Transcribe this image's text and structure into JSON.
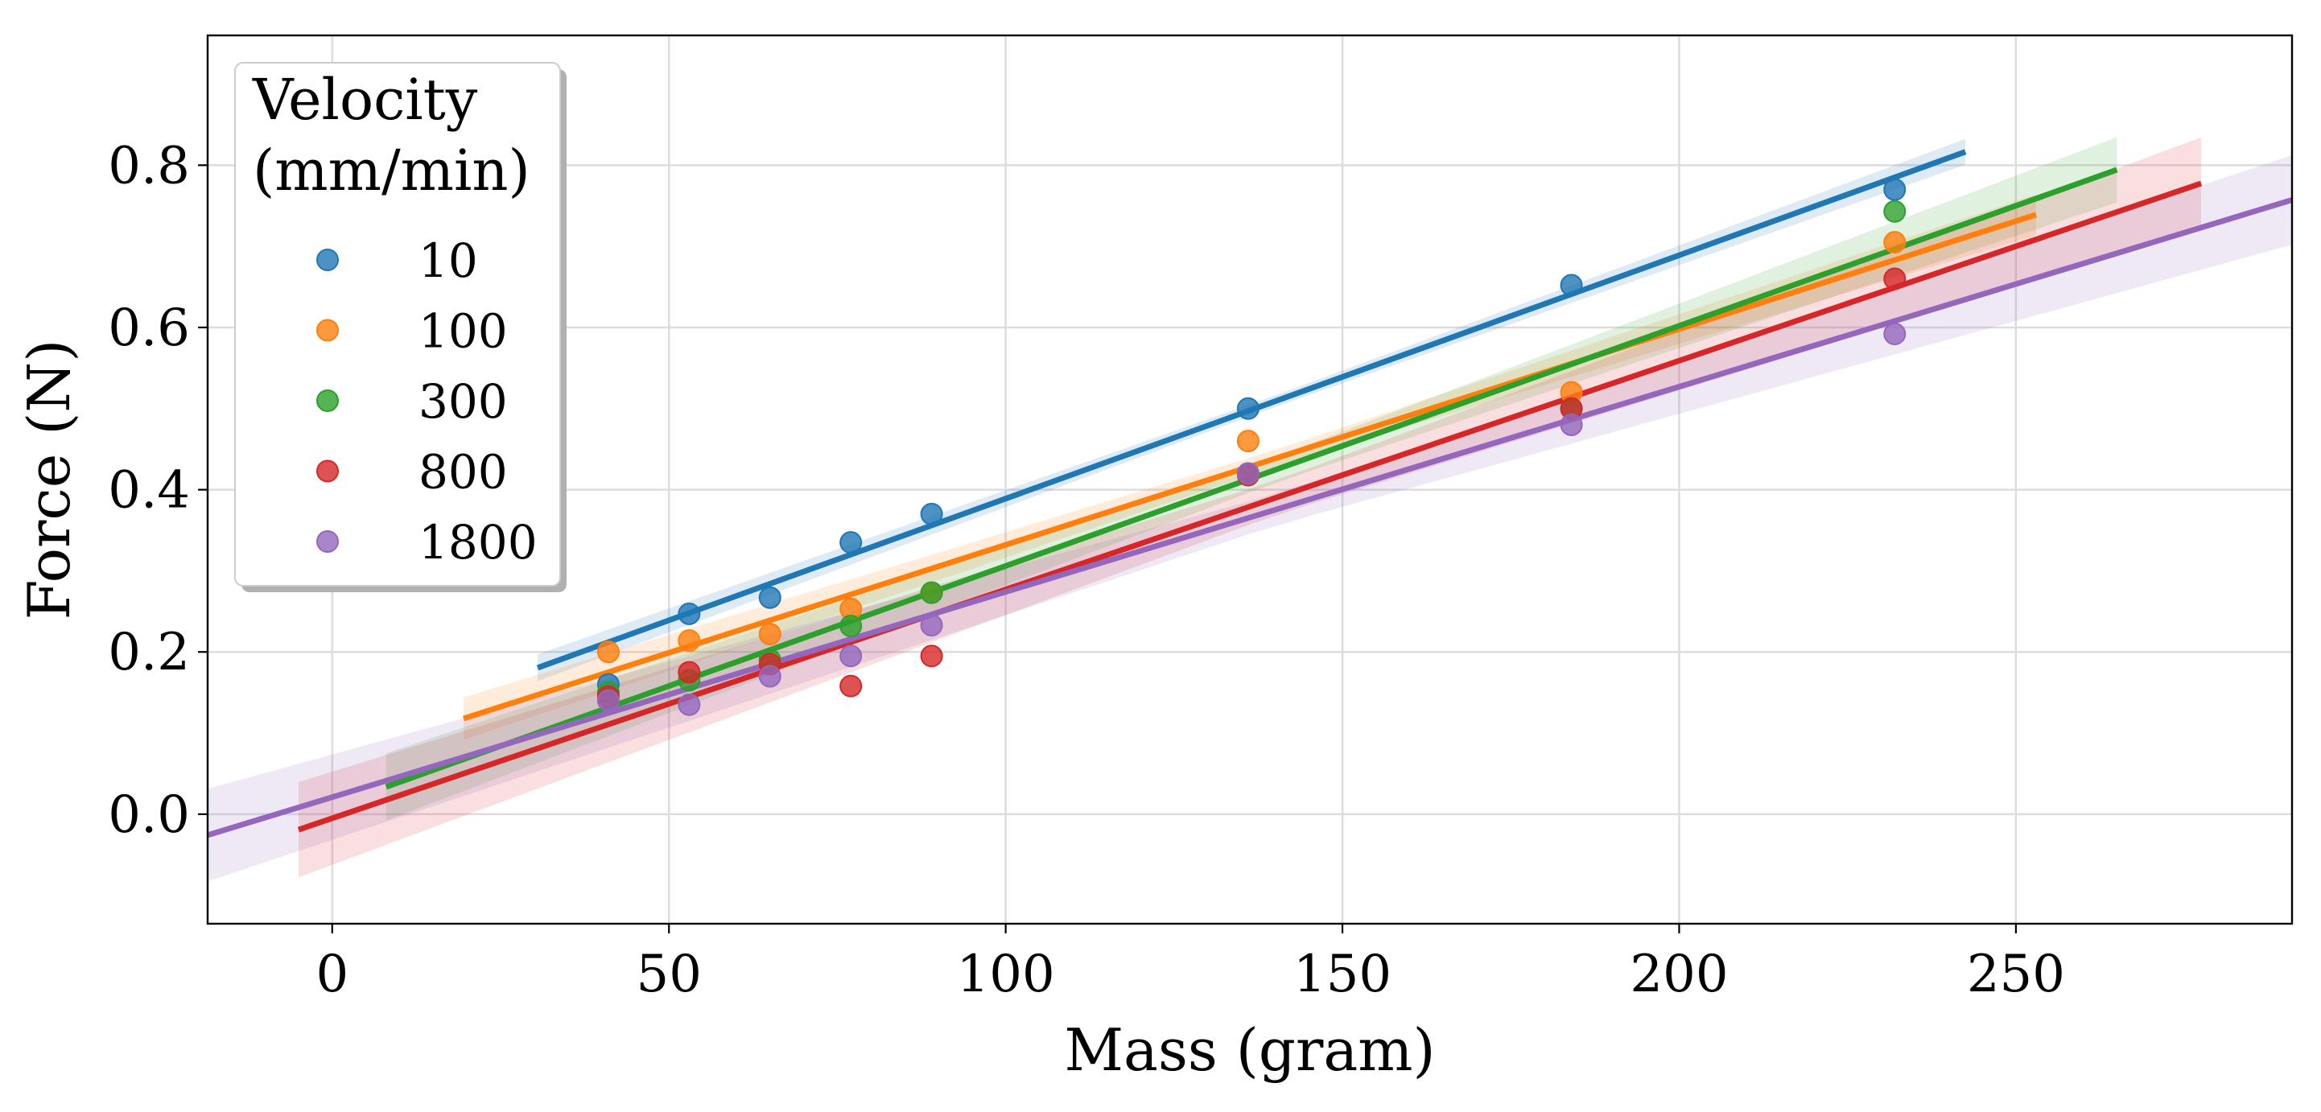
{
  "chart_data": {
    "type": "scatter",
    "title": "",
    "xlabel": "Mass (gram)",
    "ylabel": "Force (N)",
    "xlim": [
      -18.5,
      291
    ],
    "ylim": [
      -0.135,
      0.96
    ],
    "xticks": [
      0,
      50,
      100,
      150,
      200,
      250
    ],
    "yticks": [
      0.0,
      0.2,
      0.4,
      0.6,
      0.8
    ],
    "xtick_labels": [
      "0",
      "50",
      "100",
      "150",
      "200",
      "250"
    ],
    "ytick_labels": [
      "0.0",
      "0.2",
      "0.4",
      "0.6",
      "0.8"
    ],
    "grid": true,
    "legend": {
      "title_lines": [
        "Velocity",
        "(mm/min)"
      ],
      "placement": "top-left"
    },
    "series": [
      {
        "name": "10",
        "color": "#1f77b4",
        "x": [
          41,
          53,
          65,
          77,
          89,
          136,
          184,
          232
        ],
        "y": [
          0.16,
          0.247,
          0.267,
          0.335,
          0.37,
          0.5,
          0.652,
          0.77
        ],
        "fit": {
          "slope": 0.003,
          "intercept": 0.089,
          "x_range": [
            30.5,
            242.5
          ]
        },
        "band_width": 0.02
      },
      {
        "name": "100",
        "color": "#ff7f0e",
        "x": [
          41,
          53,
          65,
          77,
          89,
          136,
          184,
          232
        ],
        "y": [
          0.2,
          0.214,
          0.222,
          0.253,
          0.273,
          0.46,
          0.52,
          0.705
        ],
        "fit": {
          "slope": 0.00266,
          "intercept": 0.066,
          "x_range": [
            19.5,
            253
          ]
        },
        "band_width": 0.03
      },
      {
        "name": "300",
        "color": "#2ca02c",
        "x": [
          41,
          53,
          65,
          77,
          89,
          136,
          184,
          232
        ],
        "y": [
          0.15,
          0.165,
          0.19,
          0.232,
          0.273,
          0.42,
          0.5,
          0.743
        ],
        "fit": {
          "slope": 0.00296,
          "intercept": 0.01,
          "x_range": [
            8,
            265
          ]
        },
        "band_width": 0.045
      },
      {
        "name": "800",
        "color": "#d62728",
        "x": [
          41,
          53,
          65,
          77,
          89,
          136,
          184,
          232
        ],
        "y": [
          0.145,
          0.175,
          0.185,
          0.158,
          0.195,
          0.418,
          0.5,
          0.66
        ],
        "fit": {
          "slope": 0.00282,
          "intercept": -0.005,
          "x_range": [
            -5,
            277.5
          ]
        },
        "band_width": 0.06
      },
      {
        "name": "1800",
        "color": "#9467bd",
        "x": [
          41,
          53,
          65,
          77,
          89,
          136,
          184,
          232
        ],
        "y": [
          0.14,
          0.135,
          0.17,
          0.195,
          0.233,
          0.42,
          0.48,
          0.592
        ],
        "fit": {
          "slope": 0.00253,
          "intercept": 0.021,
          "x_range": [
            -18.5,
            291
          ]
        },
        "band_width": 0.055
      }
    ]
  }
}
